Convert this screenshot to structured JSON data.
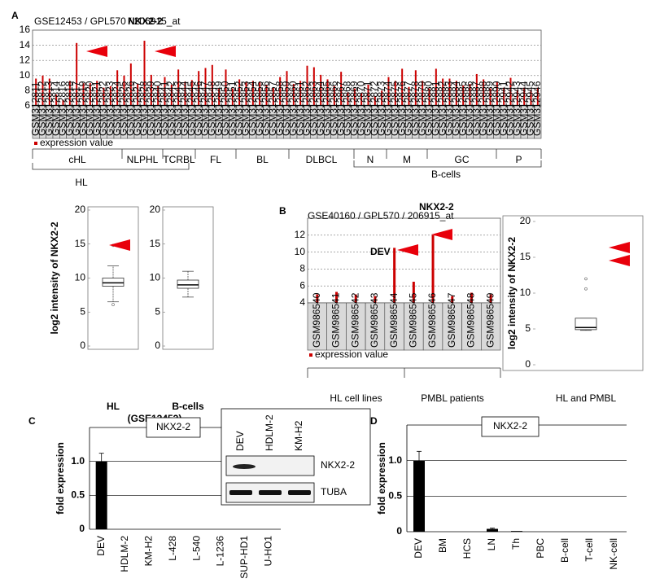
{
  "chart_data": [
    {
      "panel": "A",
      "type": "bar",
      "subtitle": "GSE12453 / GPL570 / 206915_at",
      "title": "NKX2-2",
      "color": "#cc0000",
      "categories": [
        "GSM312811",
        "GSM312812",
        "GSM312813",
        "GSM312814",
        "GSM312816",
        "GSM312818",
        "GSM312817",
        "GSM312819",
        "GSM312820",
        "GSM312821",
        "GSM312822",
        "GSM312823",
        "GSM312824",
        "GSM312825",
        "GSM312826",
        "GSM312827",
        "GSM312828",
        "GSM312839",
        "GSM312840",
        "GSM312841",
        "GSM312842",
        "GSM312843",
        "GSM312844",
        "GSM312845",
        "GSM312846",
        "GSM312847",
        "GSM312848",
        "GSM312849",
        "GSM312850",
        "GSM312851",
        "GSM312852",
        "GSM312853",
        "GSM312854",
        "GSM312855",
        "GSM312856",
        "GSM312857",
        "GSM312858",
        "GSM312859",
        "GSM312860",
        "GSM312861",
        "GSM312862",
        "GSM312863",
        "GSM312864",
        "GSM312865",
        "GSM312866",
        "GSM312867",
        "GSM312868",
        "GSM312869",
        "GSM312870",
        "GSM312871",
        "GSM312872",
        "GSM312873",
        "GSM312874",
        "GSM312875",
        "GSM312876",
        "GSM312877",
        "GSM312878",
        "GSM312879",
        "GSM312880",
        "GSM312881",
        "GSM312882",
        "GSM312883",
        "GSM312884",
        "GSM312885",
        "GSM312886",
        "GSM312887",
        "GSM312888",
        "GSM312889",
        "GSM312890",
        "GSM312941",
        "GSM312942",
        "GSM312943",
        "GSM312944",
        "GSM312945",
        "GSM312946"
      ],
      "values": [
        9.6,
        10.0,
        9.6,
        7.5,
        6.8,
        9.3,
        14.3,
        9.0,
        9.0,
        9.3,
        8.4,
        8.6,
        10.7,
        10.0,
        11.6,
        8.9,
        14.6,
        10.1,
        8.6,
        9.8,
        8.8,
        10.8,
        9.2,
        9.4,
        10.6,
        11.0,
        11.4,
        8.3,
        10.8,
        8.3,
        9.5,
        9.2,
        9.3,
        9.2,
        8.8,
        8.4,
        9.8,
        10.6,
        8.9,
        9.3,
        11.3,
        11.1,
        10.1,
        9.5,
        8.6,
        10.5,
        7.8,
        8.3,
        7.7,
        8.8,
        7.3,
        8.0,
        9.8,
        9.3,
        10.9,
        8.5,
        10.7,
        9.3,
        8.3,
        10.9,
        9.6,
        9.6,
        9.3,
        8.7,
        8.9,
        10.2,
        9.5,
        8.3,
        9.2,
        8.4,
        9.7,
        8.1,
        8.4,
        8.1,
        8.4
      ],
      "ylim": [
        6,
        16
      ],
      "yticks": [
        6,
        8,
        10,
        12,
        14,
        16
      ],
      "grid": true,
      "legend": "expression value",
      "groups": [
        "cHL",
        "NLPHL",
        "TCRBL",
        "FL",
        "BL",
        "DLBCL",
        "N",
        "M",
        "GC",
        "P"
      ],
      "supergroups": [
        "HL",
        "B-cells"
      ]
    },
    {
      "type": "box",
      "ylabel": "log2 intensity of NKX2-2",
      "xlabel": "(GSE12453)",
      "ylim": [
        0,
        20
      ],
      "yticks": [
        0,
        5,
        10,
        15,
        20
      ],
      "categories": [
        "HL",
        "B-cells"
      ],
      "boxes": [
        {
          "whislo": 6.5,
          "q1": 8.8,
          "median": 9.3,
          "q3": 10.0,
          "whishi": 11.8,
          "fliers": [
            14.8,
            6.1
          ]
        },
        {
          "whislo": 7.2,
          "q1": 8.5,
          "median": 9.0,
          "q3": 9.7,
          "whishi": 11.0,
          "fliers": []
        }
      ]
    },
    {
      "panel": "B",
      "type": "bar",
      "subtitle": "GSE40160 / GPL570 / 206915_at",
      "title": "NKX2-2",
      "color": "#cc0000",
      "categories": [
        "GSM986540",
        "GSM986541",
        "GSM986542",
        "GSM986543",
        "GSM986544",
        "GSM986545",
        "GSM986546",
        "GSM986547",
        "GSM986548",
        "GSM986549"
      ],
      "values": [
        5.0,
        5.3,
        5.0,
        4.8,
        10.5,
        6.5,
        12.0,
        4.8,
        5.2,
        5.0
      ],
      "ylim": [
        4,
        14
      ],
      "yticks": [
        4,
        6,
        8,
        10,
        12
      ],
      "grid": true,
      "legend": "expression value",
      "annotation": "DEV",
      "groups": [
        "HL cell lines",
        "PMBL patients"
      ]
    },
    {
      "type": "box",
      "ylabel": "log2 intensity of NKX2-2",
      "ylim": [
        0,
        20
      ],
      "yticks": [
        0,
        5,
        10,
        15,
        20
      ],
      "categories": [
        "HL and PMBL"
      ],
      "boxes": [
        {
          "whislo": 4.8,
          "q1": 4.9,
          "median": 5.2,
          "q3": 6.5,
          "whishi": 6.5,
          "fliers": [
            12.0,
            10.6
          ]
        }
      ]
    },
    {
      "panel": "C",
      "type": "bar",
      "title": "NKX2-2",
      "ylabel": "fold expression",
      "color": "#000000",
      "categories": [
        "DEV",
        "HDLM-2",
        "KM-H2",
        "L-428",
        "L-540",
        "L-1236",
        "SUP-HD1",
        "U-HO1"
      ],
      "category_colors": [
        "#e8291c",
        "#000000",
        "#000000",
        "#000000",
        "#000000",
        "#000000",
        "#000000",
        "#000000"
      ],
      "values": [
        1.0,
        0,
        0,
        0,
        0,
        0,
        0,
        0
      ],
      "errors": [
        0.12,
        0,
        0,
        0,
        0,
        0,
        0,
        0
      ],
      "ylim": [
        0,
        1.5
      ],
      "yticks": [
        0,
        {
          "value": 0.5,
          "label": "0.5"
        },
        {
          "value": 1,
          "label": "1.0"
        }
      ],
      "grid": true,
      "inset": {
        "lanes": [
          "DEV",
          "HDLM-2",
          "KM-H2"
        ],
        "bands": [
          "NKX2-2",
          "TUBA"
        ]
      }
    },
    {
      "panel": "D",
      "type": "bar",
      "title": "NKX2-2",
      "ylabel": "fold expression",
      "color": "#000000",
      "categories": [
        "DEV",
        "BM",
        "HCS",
        "LN",
        "Th",
        "PBC",
        "B-cell",
        "T-cell",
        "NK-cell"
      ],
      "category_colors": [
        "#e8291c",
        "#000000",
        "#000000",
        "#000000",
        "#000000",
        "#000000",
        "#000000",
        "#000000",
        "#000000"
      ],
      "values": [
        1.0,
        0,
        0,
        0.04,
        0.01,
        0,
        0,
        0,
        0
      ],
      "errors": [
        0.13,
        0,
        0,
        0.01,
        0,
        0,
        0,
        0,
        0
      ],
      "ylim": [
        0,
        1.5
      ],
      "yticks": [
        0,
        {
          "value": 0.5,
          "label": "0.5"
        },
        {
          "value": 1,
          "label": "1.0"
        }
      ],
      "grid": true
    }
  ]
}
